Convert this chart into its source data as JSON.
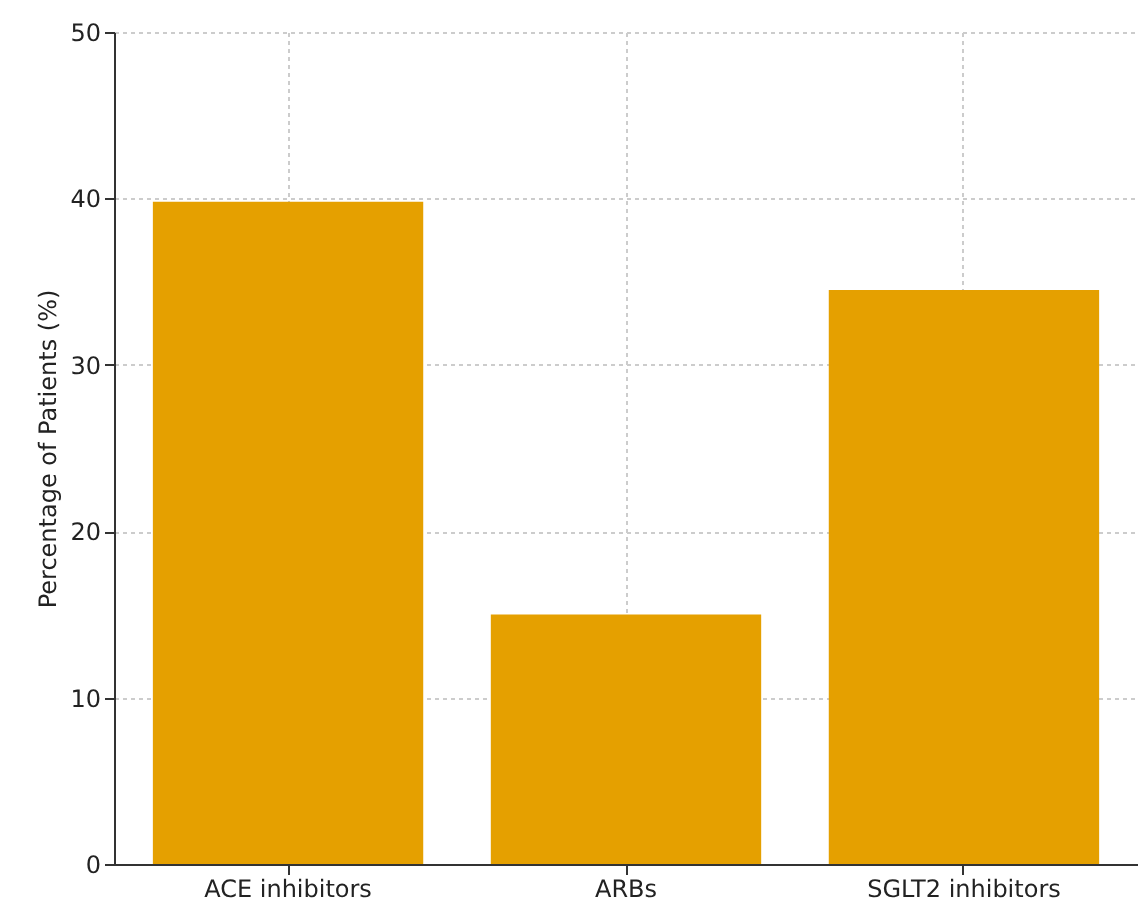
{
  "chart_data": {
    "type": "bar",
    "ylabel": "Percentage of Patients (%)",
    "categories": [
      "ACE inhibitors",
      "ARBs",
      "SGLT2 inhibitors"
    ],
    "values": [
      39.8,
      15,
      34.5
    ],
    "color": "#e5a000",
    "ylim": [
      0,
      50
    ],
    "yticks": [
      0,
      10,
      20,
      30,
      40,
      50
    ],
    "grid": true
  }
}
